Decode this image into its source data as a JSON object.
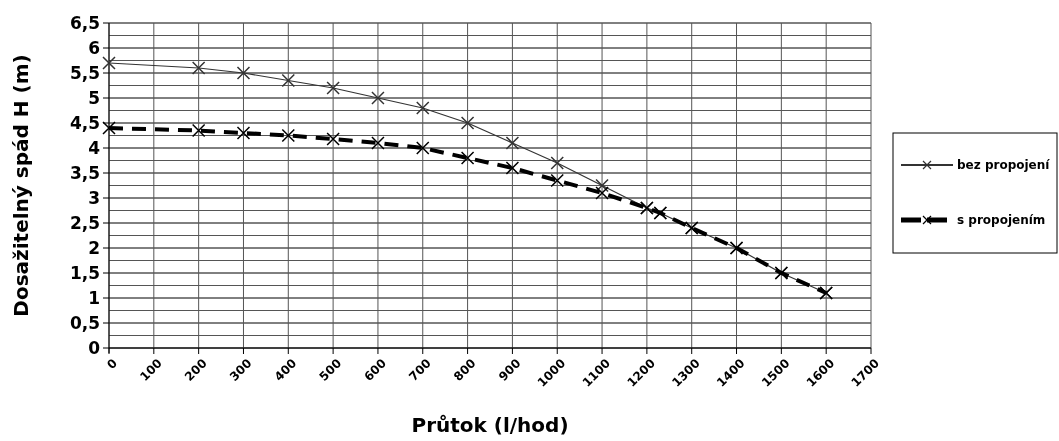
{
  "chart_data": {
    "type": "line",
    "xlabel": "Průtok (l/hod)",
    "ylabel": "Dosažitelný spád H (m)",
    "xlim": [
      0,
      1700
    ],
    "xticks": [
      0,
      100,
      200,
      300,
      400,
      500,
      600,
      700,
      800,
      900,
      1000,
      1100,
      1200,
      1300,
      1400,
      1500,
      1600,
      1700
    ],
    "ylim": [
      0,
      6.5
    ],
    "yticks": [
      0,
      {
        "value": 0.5,
        "label": "0,5"
      },
      1,
      {
        "value": 1.5,
        "label": "1,5"
      },
      2,
      {
        "value": 2.5,
        "label": "2,5"
      },
      3,
      {
        "value": 3.5,
        "label": "3,5"
      },
      4,
      {
        "value": 4.5,
        "label": "4,5"
      },
      5,
      {
        "value": 5.5,
        "label": "5,5"
      },
      6,
      {
        "value": 6.5,
        "label": "6,5"
      }
    ],
    "grid": true,
    "legend": "right",
    "marker": "cross",
    "series": [
      {
        "name": "bez propojení",
        "color": "#333333",
        "line_style": "solid",
        "x": [
          0,
          200,
          300,
          400,
          500,
          600,
          700,
          800,
          900,
          1000,
          1100,
          1200,
          1230,
          1300,
          1400,
          1500,
          1600
        ],
        "values": [
          5.7,
          5.6,
          5.5,
          5.35,
          5.2,
          5.0,
          4.8,
          4.5,
          4.1,
          3.7,
          3.25,
          2.8,
          2.7,
          2.4,
          2.0,
          1.5,
          1.1
        ]
      },
      {
        "name": "s propojením",
        "color": "#000000",
        "line_style": "dashed",
        "x": [
          0,
          200,
          300,
          400,
          500,
          600,
          700,
          800,
          900,
          1000,
          1100,
          1200,
          1230,
          1300,
          1400,
          1500,
          1600
        ],
        "values": [
          4.4,
          4.35,
          4.3,
          4.25,
          4.18,
          4.1,
          4.0,
          3.8,
          3.6,
          3.35,
          3.1,
          2.8,
          2.7,
          2.4,
          2.0,
          1.5,
          1.1
        ]
      }
    ]
  }
}
